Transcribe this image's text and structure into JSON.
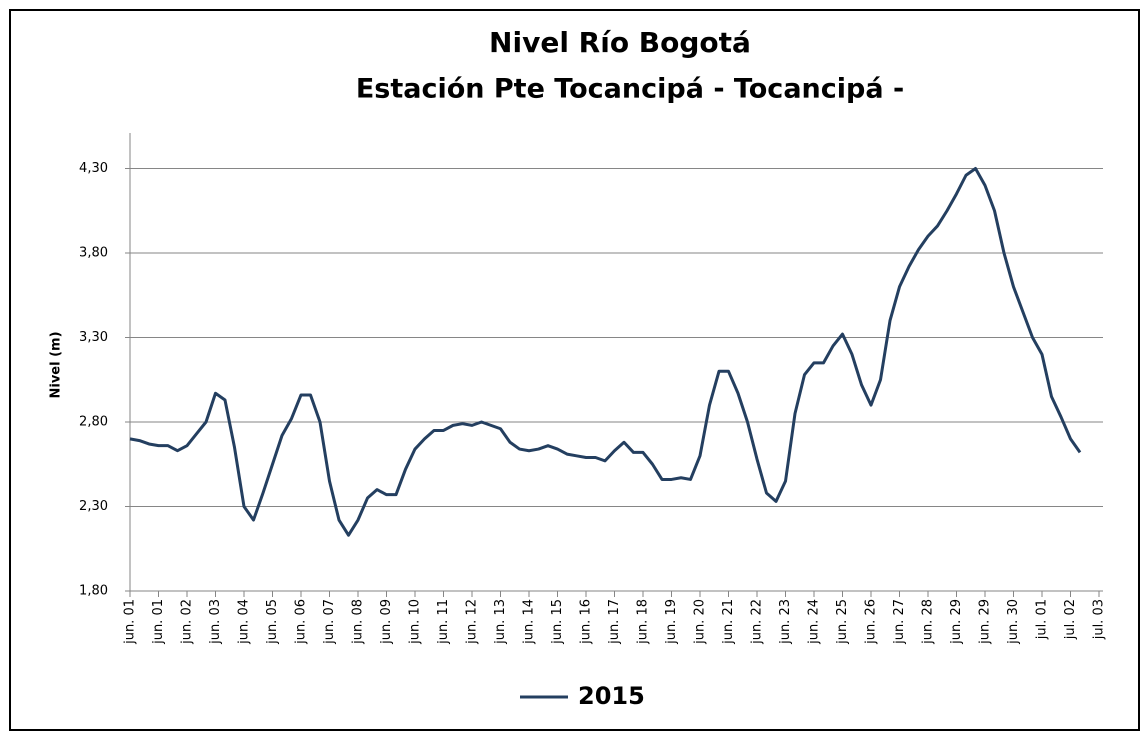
{
  "chart_data": {
    "type": "line",
    "title": "Nivel Río Bogotá",
    "subtitle": "Estación Pte Tocancipá - Tocancipá -",
    "y_label": "Nivel (m)",
    "categories": [
      "jun. 01",
      null,
      null,
      "jun. 01",
      null,
      null,
      "jun. 02",
      null,
      null,
      "jun. 03",
      null,
      null,
      "jun. 04",
      null,
      null,
      "jun. 05",
      null,
      null,
      "jun. 06",
      null,
      null,
      "jun. 07",
      null,
      null,
      "jun. 08",
      null,
      null,
      "jun. 09",
      null,
      null,
      "jun. 10",
      null,
      null,
      "jun. 11",
      null,
      null,
      "jun. 12",
      null,
      null,
      "jun. 13",
      null,
      null,
      "jun. 14",
      null,
      null,
      "jun. 15",
      null,
      null,
      "jun. 16",
      null,
      null,
      "jun. 17",
      null,
      null,
      "jun. 18",
      null,
      null,
      "jun. 19",
      null,
      null,
      "jun. 20",
      null,
      null,
      "jun. 21",
      null,
      null,
      "jun. 22",
      null,
      null,
      "jun. 23",
      null,
      null,
      "jun. 24",
      null,
      null,
      "jun. 25",
      null,
      null,
      "jun. 26",
      null,
      null,
      "jun. 27",
      null,
      null,
      "jun. 28",
      null,
      null,
      "jun. 29",
      null,
      null,
      "jun. 29",
      null,
      null,
      "jun. 30",
      null,
      null,
      "jul. 01",
      null,
      null,
      "jul. 02",
      null,
      null,
      "jul. 03"
    ],
    "series": [
      {
        "name": "2015",
        "color": "#243f60",
        "values": [
          2.7,
          2.69,
          2.67,
          2.66,
          2.66,
          2.63,
          2.66,
          2.73,
          2.8,
          2.97,
          2.93,
          2.65,
          2.3,
          2.22,
          2.38,
          2.55,
          2.72,
          2.82,
          2.96,
          2.96,
          2.8,
          2.45,
          2.22,
          2.13,
          2.22,
          2.35,
          2.4,
          2.37,
          2.37,
          2.52,
          2.64,
          2.7,
          2.75,
          2.75,
          2.78,
          2.79,
          2.78,
          2.8,
          2.78,
          2.76,
          2.68,
          2.64,
          2.63,
          2.64,
          2.66,
          2.64,
          2.61,
          2.6,
          2.59,
          2.59,
          2.57,
          2.63,
          2.68,
          2.62,
          2.62,
          2.55,
          2.46,
          2.46,
          2.47,
          2.46,
          2.6,
          2.9,
          3.1,
          3.1,
          2.97,
          2.8,
          2.58,
          2.38,
          2.33,
          2.45,
          2.85,
          3.08,
          3.15,
          3.15,
          3.25,
          3.32,
          3.2,
          3.02,
          2.9,
          3.05,
          3.4,
          3.6,
          3.72,
          3.82,
          3.9,
          3.96,
          4.05,
          4.15,
          4.26,
          4.3,
          4.2,
          4.05,
          3.8,
          3.6,
          3.45,
          3.3,
          3.2,
          2.95,
          2.83,
          2.7,
          2.62,
          null,
          null
        ]
      }
    ],
    "ylim": [
      1.8,
      4.51
    ],
    "yticks": [
      {
        "value": 1.8,
        "label": "1,80"
      },
      {
        "value": 2.3,
        "label": "2,30"
      },
      {
        "value": 2.8,
        "label": "2,80"
      },
      {
        "value": 3.3,
        "label": "3,30"
      },
      {
        "value": 3.8,
        "label": "3,80"
      },
      {
        "value": 4.3,
        "label": "4,30"
      }
    ],
    "grid": true,
    "legend": "bottom"
  }
}
